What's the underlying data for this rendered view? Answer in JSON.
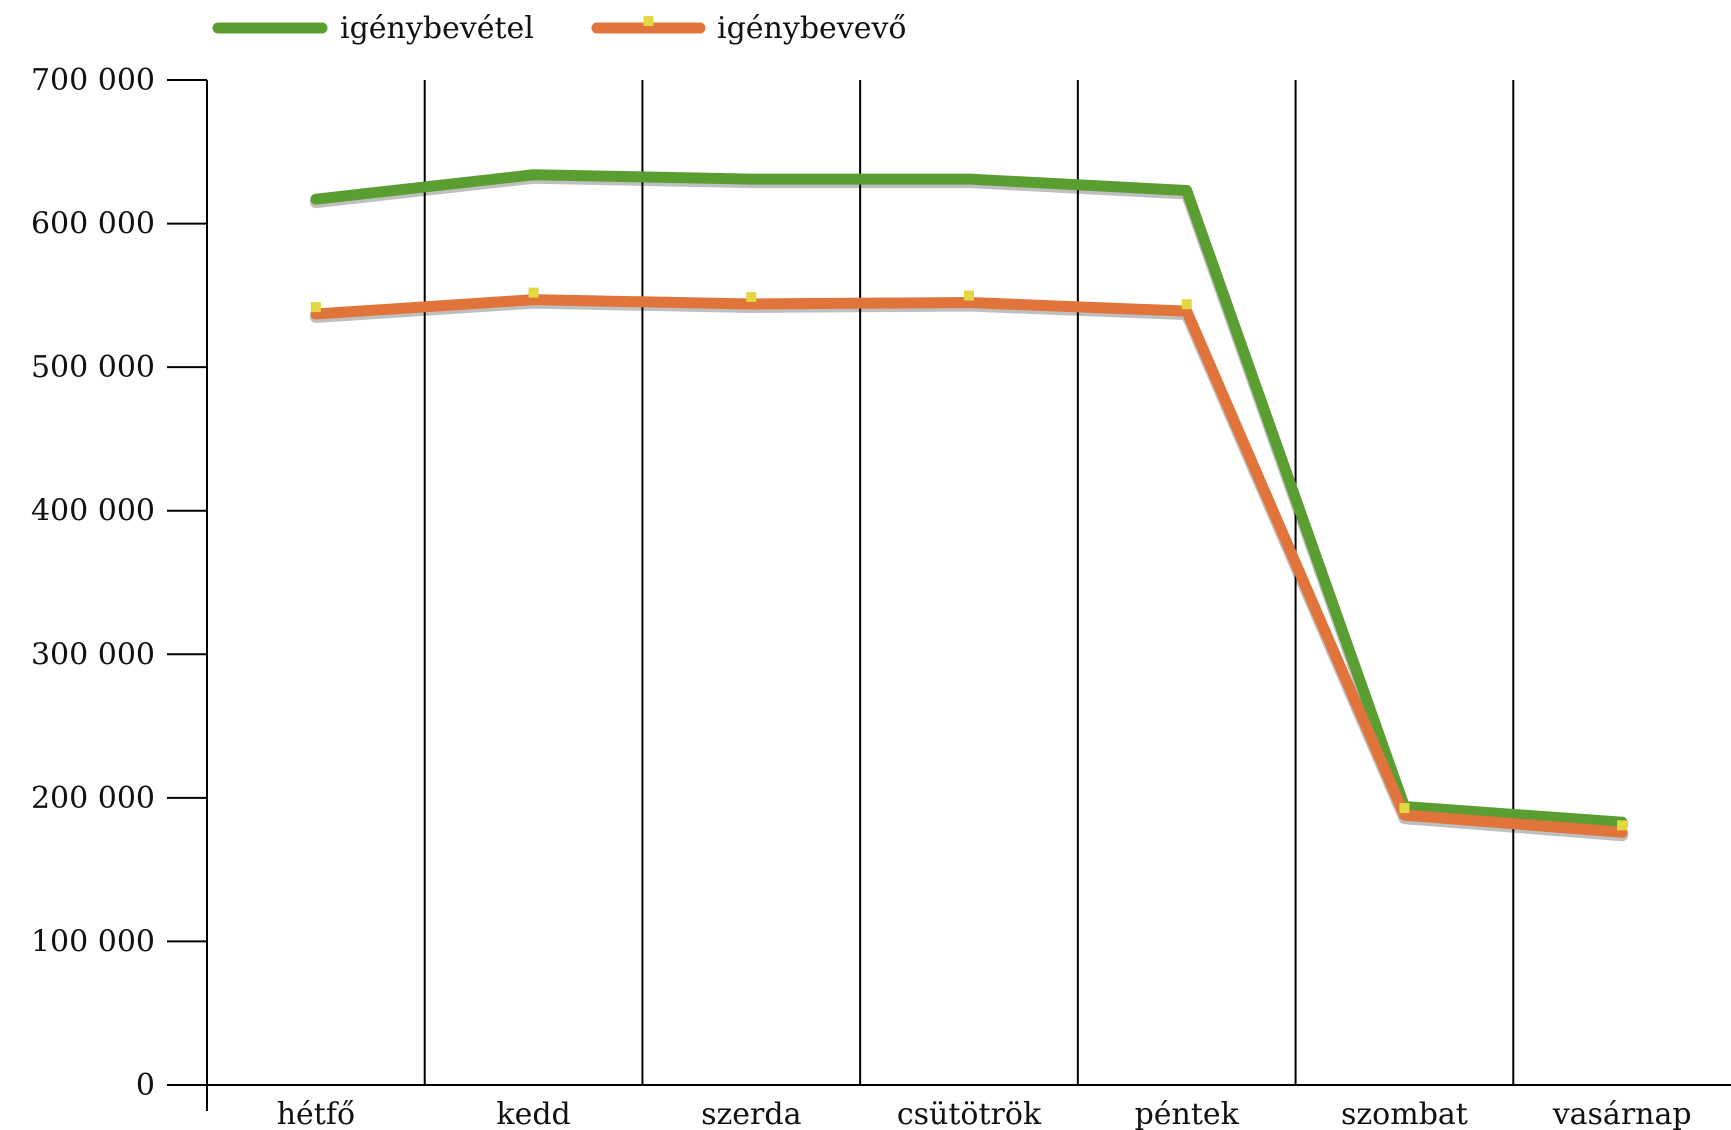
{
  "chart_data": {
    "type": "line",
    "title": "",
    "xlabel": "",
    "ylabel": "",
    "categories": [
      "hétfő",
      "kedd",
      "szerda",
      "csütötrök",
      "péntek",
      "szombat",
      "vasárnap"
    ],
    "ylim": [
      0,
      700000
    ],
    "yticks": [
      0,
      100000,
      200000,
      300000,
      400000,
      500000,
      600000,
      700000
    ],
    "ytick_labels": [
      "0",
      "100 000",
      "200 000",
      "300 000",
      "400 000",
      "500 000",
      "600 000",
      "700 000"
    ],
    "grid": "vertical lines between categories",
    "legend": "top-left",
    "series": [
      {
        "name": "igénybevétel",
        "color": "#5a9e32",
        "values": [
          617000,
          634000,
          631000,
          631000,
          623000,
          194000,
          183000
        ]
      },
      {
        "name": "igénybevevő",
        "color": "#e0743a",
        "marker_color": "#e2d641",
        "values": [
          537000,
          547000,
          544000,
          545000,
          539000,
          188000,
          176000
        ]
      }
    ]
  }
}
